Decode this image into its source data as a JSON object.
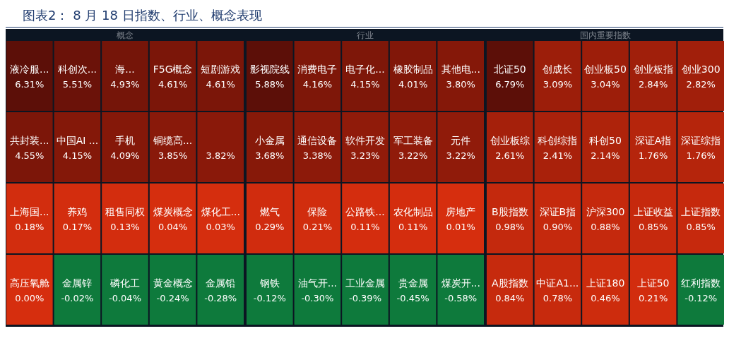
{
  "chart_data": [
    {
      "type": "other",
      "title": "图表2： 8 月 18 日指数、行业、概念表现",
      "subtitle": "概念",
      "categories": [
        "液冷服...",
        "科创次...",
        "海...",
        "F5G概念",
        "短剧游戏",
        "共封装...",
        "中国AI ...",
        "手机",
        "铜缆高...",
        null,
        "上海国...",
        "养鸡",
        "租售同权",
        "煤炭概念",
        "煤化工...",
        "高压氧舱",
        "金属锌",
        "磷化工",
        "黄金概念",
        "金属铅"
      ],
      "values": [
        6.31,
        5.51,
        4.93,
        4.61,
        4.61,
        4.55,
        4.15,
        4.09,
        3.85,
        3.82,
        0.18,
        0.17,
        0.13,
        0.04,
        0.03,
        0.0,
        -0.02,
        -0.04,
        -0.24,
        -0.28
      ],
      "value_labels": [
        "6.31%",
        "5.51%",
        "4.93%",
        "4.61%",
        "4.61%",
        "4.55%",
        "4.15%",
        "4.09%",
        "3.85%",
        "3.82%",
        "0.18%",
        "0.17%",
        "0.13%",
        "0.04%",
        "0.03%",
        "0.00%",
        "-0.02%",
        "-0.04%",
        "-0.24%",
        "-0.28%"
      ]
    },
    {
      "type": "other",
      "subtitle": "行业",
      "categories": [
        "影视院线",
        "消费电子",
        "电子化...",
        "橡胶制品",
        "其他电...",
        "小金属",
        "通信设备",
        "软件开发",
        "军工装备",
        "元件",
        "燃气",
        "保险",
        "公路铁...",
        "农化制品",
        "房地产",
        "钢铁",
        "油气开...",
        "工业金属",
        "贵金属",
        "煤炭开..."
      ],
      "values": [
        5.88,
        4.16,
        4.15,
        4.01,
        3.8,
        3.68,
        3.38,
        3.23,
        3.22,
        3.22,
        0.29,
        0.21,
        0.11,
        0.11,
        0.01,
        -0.12,
        -0.3,
        -0.39,
        -0.45,
        -0.58
      ],
      "value_labels": [
        "5.88%",
        "4.16%",
        "4.15%",
        "4.01%",
        "3.80%",
        "3.68%",
        "3.38%",
        "3.23%",
        "3.22%",
        "3.22%",
        "0.29%",
        "0.21%",
        "0.11%",
        "0.11%",
        "0.01%",
        "-0.12%",
        "-0.30%",
        "-0.39%",
        "-0.45%",
        "-0.58%"
      ]
    },
    {
      "type": "other",
      "subtitle": "国内重要指数",
      "categories": [
        "北证50",
        "创成长",
        "创业板50",
        "创业板指",
        "创业300",
        "创业板综",
        "科创综指",
        "科创50",
        "深证A指",
        "深证综指",
        "B股指数",
        "深证B指",
        "沪深300",
        "上证收益",
        "上证指数",
        "A股指数",
        "中证A1...",
        "上证180",
        "上证50",
        "红利指数"
      ],
      "values": [
        6.79,
        3.09,
        3.04,
        2.84,
        2.82,
        2.61,
        2.41,
        2.14,
        1.76,
        1.76,
        0.98,
        0.9,
        0.88,
        0.85,
        0.85,
        0.84,
        0.78,
        0.46,
        0.21,
        -0.12
      ],
      "value_labels": [
        "6.79%",
        "3.09%",
        "3.04%",
        "2.84%",
        "2.82%",
        "2.61%",
        "2.41%",
        "2.14%",
        "1.76%",
        "1.76%",
        "0.98%",
        "0.90%",
        "0.88%",
        "0.85%",
        "0.85%",
        "0.84%",
        "0.78%",
        "0.46%",
        "0.21%",
        "-0.12%"
      ]
    }
  ]
}
